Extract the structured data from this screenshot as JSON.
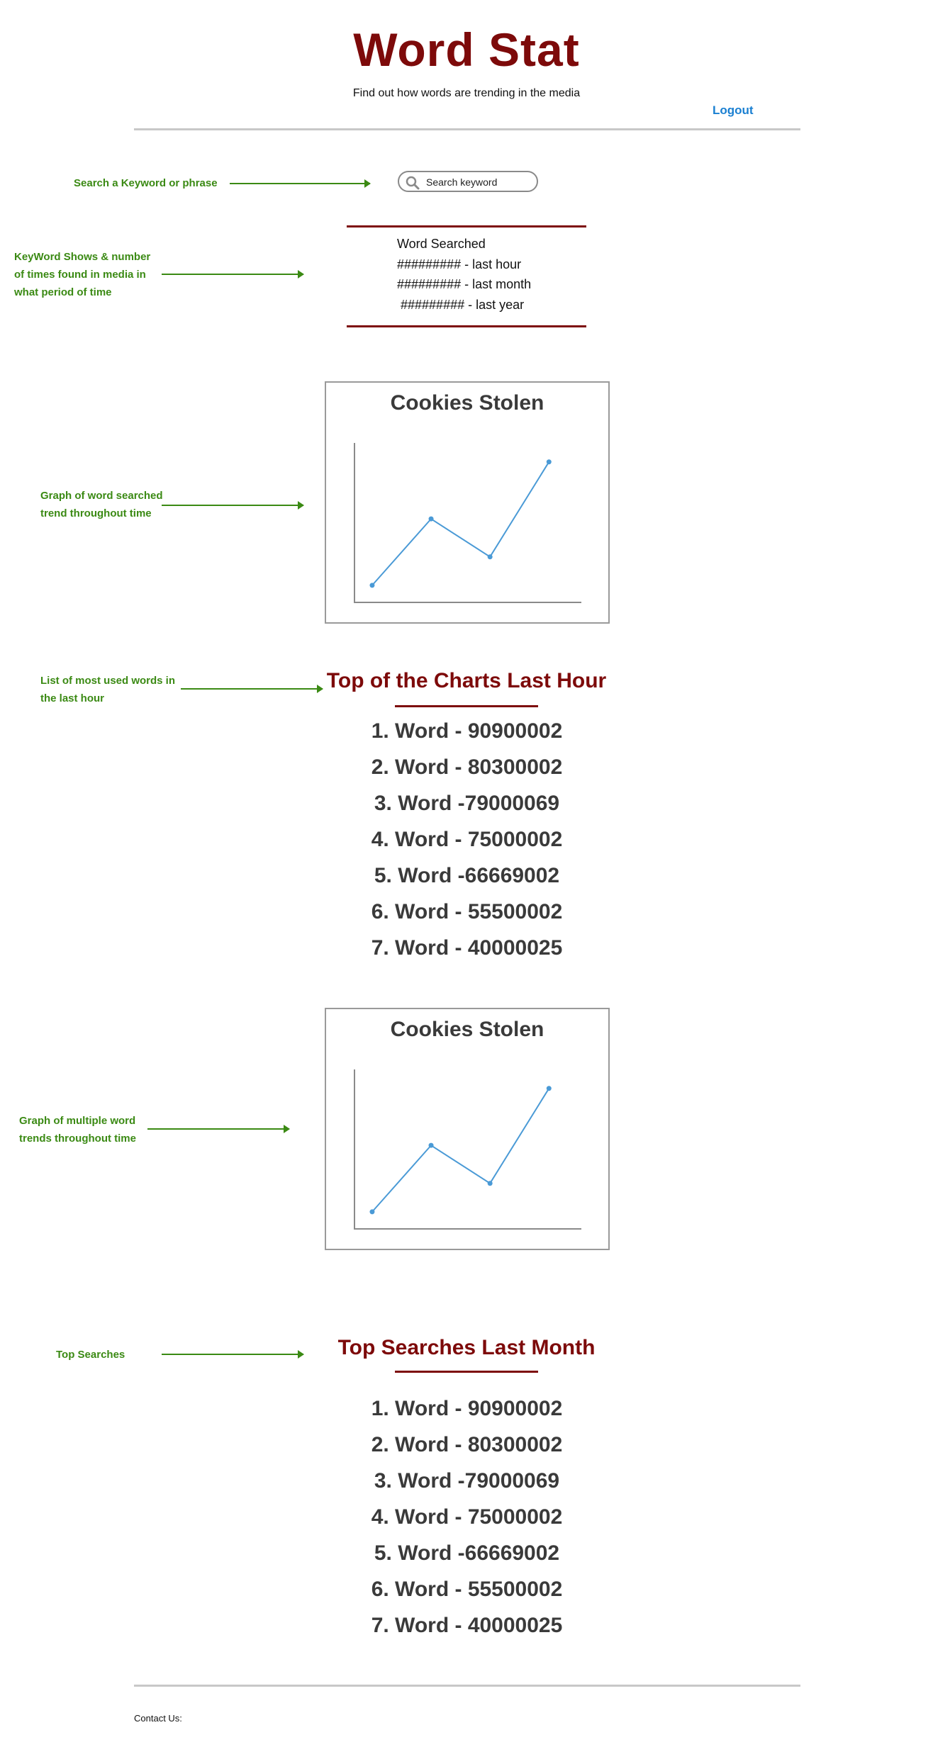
{
  "header": {
    "title": "Word Stat",
    "tagline": "Find out how words are trending in the media",
    "logout_label": "Logout"
  },
  "annotations": {
    "search": "Search a Keyword or phrase",
    "keyword_shows": [
      "KeyWord Shows  &  number",
      "of times found in media  in",
      "what period of time"
    ],
    "graph_single": [
      "Graph of word searched",
      "trend throughout time"
    ],
    "most_used": [
      "List of most used words in",
      "the last hour"
    ],
    "graph_multiple": [
      "Graph of multiple word",
      "trends throughout time"
    ],
    "top_searches": "Top Searches"
  },
  "search": {
    "placeholder": "Search keyword",
    "value": ""
  },
  "word_summary": {
    "heading": "Word Searched",
    "lines": [
      "######### - last hour",
      "######### - last month",
      " ######### - last year"
    ]
  },
  "charts": [
    {
      "title": "Cookies Stolen"
    },
    {
      "title": "Cookies Stolen"
    }
  ],
  "chart_data": [
    {
      "type": "line",
      "title": "Cookies Stolen",
      "xlabel": "",
      "ylabel": "",
      "x": [
        1,
        2,
        3,
        4
      ],
      "y": [
        1.5,
        5.0,
        3.0,
        8.0
      ],
      "xlim": [
        0.7,
        4.55
      ],
      "ylim": [
        0.6,
        9.0
      ],
      "color": "#4a9ad6"
    },
    {
      "type": "line",
      "title": "Cookies Stolen",
      "xlabel": "",
      "ylabel": "",
      "x": [
        1,
        2,
        3,
        4
      ],
      "y": [
        1.5,
        5.0,
        3.0,
        8.0
      ],
      "xlim": [
        0.7,
        4.55
      ],
      "ylim": [
        0.6,
        9.0
      ],
      "color": "#4a9ad6"
    }
  ],
  "lists": {
    "last_hour": {
      "title": "Top of the Charts Last Hour",
      "items": [
        "1. Word - 90900002",
        "2. Word - 80300002",
        "3. Word -79000069",
        "4. Word - 75000002",
        "5. Word -66669002",
        "6. Word - 55500002",
        "7. Word - 40000025"
      ]
    },
    "last_month": {
      "title": "Top Searches Last Month",
      "items": [
        "1. Word - 90900002",
        "2. Word - 80300002",
        "3. Word -79000069",
        "4. Word - 75000002",
        "5. Word -66669002",
        "6. Word - 55500002",
        "7. Word - 40000025"
      ]
    }
  },
  "footer": {
    "contact_label": "Contact Us:"
  },
  "colors": {
    "brand": "#7d0a0a",
    "annotation": "#3b8a14",
    "link": "#1a7fd1",
    "chart_line": "#4a9ad6"
  }
}
